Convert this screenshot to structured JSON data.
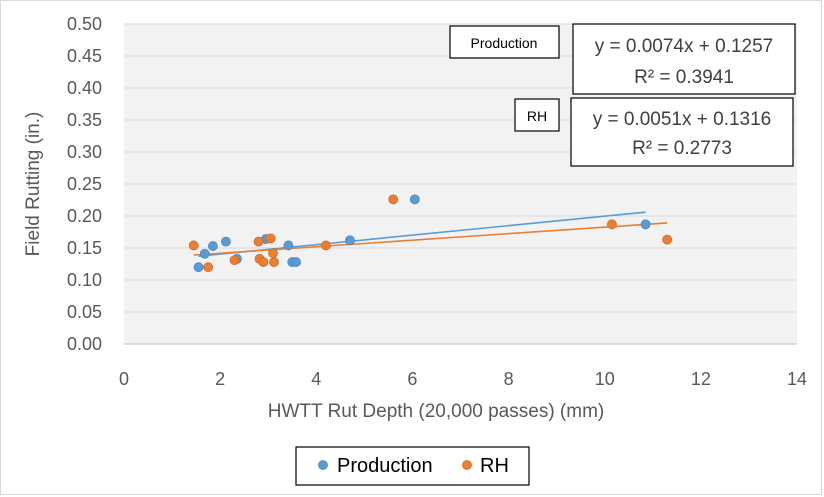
{
  "chart_data": {
    "type": "scatter",
    "xlabel": "HWTT Rut Depth (20,000 passes) (mm)",
    "ylabel": "Field Rutting (in.)",
    "xlim": [
      0,
      14
    ],
    "ylim": [
      0,
      0.5
    ],
    "x_ticks": [
      "0",
      "2",
      "4",
      "6",
      "8",
      "10",
      "12",
      "14"
    ],
    "y_ticks": [
      "0.00",
      "0.05",
      "0.10",
      "0.15",
      "0.20",
      "0.25",
      "0.30",
      "0.35",
      "0.40",
      "0.45",
      "0.50"
    ],
    "grid": "horizontal",
    "legend_position": "bottom",
    "series": [
      {
        "name": "Production",
        "color": "#5b9bd5",
        "points": [
          [
            1.55,
            0.12
          ],
          [
            1.68,
            0.141
          ],
          [
            1.85,
            0.153
          ],
          [
            2.12,
            0.16
          ],
          [
            2.35,
            0.133
          ],
          [
            2.95,
            0.164
          ],
          [
            3.42,
            0.154
          ],
          [
            3.5,
            0.128
          ],
          [
            3.58,
            0.128
          ],
          [
            4.7,
            0.162
          ],
          [
            6.05,
            0.226
          ],
          [
            10.85,
            0.187
          ]
        ],
        "trendline": {
          "slope": 0.0074,
          "intercept": 0.1257,
          "x_range": [
            1.55,
            10.85
          ]
        },
        "equation": "y = 0.0074x + 0.1257",
        "r2": "R² = 0.3941",
        "tag": "Production"
      },
      {
        "name": "RH",
        "color": "#ed7d31",
        "points": [
          [
            1.45,
            0.154
          ],
          [
            1.75,
            0.12
          ],
          [
            2.3,
            0.131
          ],
          [
            2.8,
            0.16
          ],
          [
            2.82,
            0.133
          ],
          [
            2.9,
            0.128
          ],
          [
            3.05,
            0.165
          ],
          [
            3.1,
            0.142
          ],
          [
            3.12,
            0.128
          ],
          [
            4.2,
            0.154
          ],
          [
            5.6,
            0.226
          ],
          [
            10.15,
            0.187
          ],
          [
            11.3,
            0.163
          ]
        ],
        "trendline": {
          "slope": 0.0051,
          "intercept": 0.1316,
          "x_range": [
            1.45,
            11.3
          ]
        },
        "equation": "y = 0.0051x + 0.1316",
        "r2": "R² = 0.2773",
        "tag": "RH"
      }
    ]
  }
}
